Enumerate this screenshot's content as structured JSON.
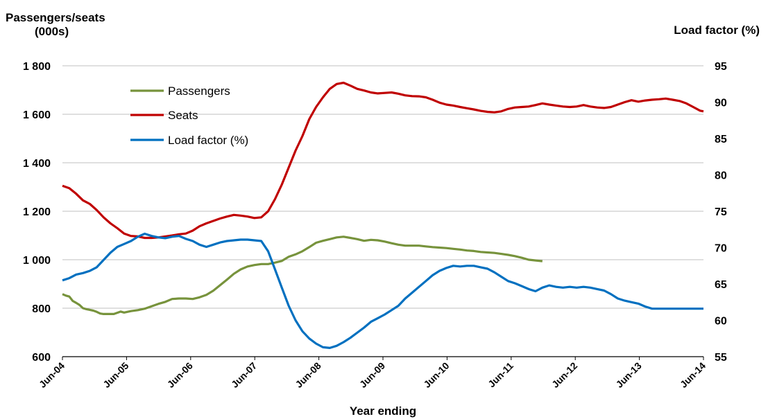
{
  "chart_data": {
    "type": "line",
    "left_axis_title_line1": "Passengers/seats",
    "left_axis_title_line2": "(000s)",
    "right_axis_title": "Load factor  (%)",
    "xlabel": "Year ending",
    "x_ticks": [
      "Jun-04",
      "Jun-05",
      "Jun-06",
      "Jun-07",
      "Jun-08",
      "Jun-09",
      "Jun-10",
      "Jun-11",
      "Jun-12",
      "Jun-13",
      "Jun-14"
    ],
    "left_ylim": [
      600,
      1800
    ],
    "left_y_ticks": [
      "600",
      "800",
      "1 000",
      "1 200",
      "1 400",
      "1 600",
      "1 800"
    ],
    "left_y_values": [
      600,
      800,
      1000,
      1200,
      1400,
      1600,
      1800
    ],
    "right_ylim": [
      55,
      95
    ],
    "right_y_ticks": [
      "55",
      "60",
      "65",
      "70",
      "75",
      "80",
      "85",
      "90",
      "95"
    ],
    "right_y_values": [
      55,
      60,
      65,
      70,
      75,
      80,
      85,
      90,
      95
    ],
    "grid": "horizontal",
    "legend_position": "top-left",
    "series": [
      {
        "name": "Passengers",
        "axis": "left",
        "color": "#77933c",
        "points": [
          [
            0,
            858
          ],
          [
            0.1,
            852
          ],
          [
            0.2,
            848
          ],
          [
            0.3,
            830
          ],
          [
            0.4,
            822
          ],
          [
            0.5,
            813
          ],
          [
            0.6,
            800
          ],
          [
            0.7,
            796
          ],
          [
            0.8,
            793
          ],
          [
            0.9,
            790
          ],
          [
            1.0,
            785
          ],
          [
            1.1,
            778
          ],
          [
            1.2,
            776
          ],
          [
            1.3,
            776
          ],
          [
            1.5,
            776
          ],
          [
            1.7,
            786
          ],
          [
            1.8,
            782
          ],
          [
            2.0,
            788
          ],
          [
            2.2,
            792
          ],
          [
            2.4,
            798
          ],
          [
            2.6,
            808
          ],
          [
            2.8,
            818
          ],
          [
            3.0,
            826
          ],
          [
            3.2,
            838
          ],
          [
            3.4,
            840
          ],
          [
            3.6,
            840
          ],
          [
            3.8,
            838
          ],
          [
            4.0,
            845
          ],
          [
            4.2,
            855
          ],
          [
            4.4,
            872
          ],
          [
            4.6,
            895
          ],
          [
            4.8,
            918
          ],
          [
            5.0,
            942
          ],
          [
            5.2,
            960
          ],
          [
            5.4,
            972
          ],
          [
            5.6,
            978
          ],
          [
            5.8,
            982
          ],
          [
            6.0,
            982
          ],
          [
            6.2,
            988
          ],
          [
            6.4,
            995
          ],
          [
            6.6,
            1012
          ],
          [
            6.8,
            1022
          ],
          [
            7.0,
            1035
          ],
          [
            7.2,
            1052
          ],
          [
            7.4,
            1070
          ],
          [
            7.6,
            1078
          ],
          [
            7.8,
            1085
          ],
          [
            8.0,
            1092
          ],
          [
            8.2,
            1095
          ],
          [
            8.4,
            1090
          ],
          [
            8.6,
            1085
          ],
          [
            8.8,
            1078
          ],
          [
            9.0,
            1082
          ],
          [
            9.2,
            1080
          ],
          [
            9.4,
            1075
          ],
          [
            9.6,
            1068
          ],
          [
            9.8,
            1062
          ],
          [
            10.0,
            1058
          ],
          [
            10.2,
            1058
          ],
          [
            10.4,
            1058
          ],
          [
            10.6,
            1055
          ],
          [
            10.8,
            1052
          ],
          [
            11.0,
            1050
          ],
          [
            11.2,
            1048
          ],
          [
            11.4,
            1045
          ],
          [
            11.6,
            1042
          ],
          [
            11.8,
            1038
          ],
          [
            12.0,
            1036
          ],
          [
            12.2,
            1032
          ],
          [
            12.4,
            1030
          ],
          [
            12.6,
            1028
          ],
          [
            12.8,
            1024
          ],
          [
            13.0,
            1020
          ],
          [
            13.2,
            1015
          ],
          [
            13.4,
            1008
          ],
          [
            13.6,
            1000
          ],
          [
            14.0,
            994
          ]
        ]
      },
      {
        "name": "Seats",
        "axis": "left",
        "color": "#c00000",
        "points": [
          [
            0,
            1305
          ],
          [
            0.2,
            1295
          ],
          [
            0.4,
            1272
          ],
          [
            0.6,
            1245
          ],
          [
            0.8,
            1230
          ],
          [
            1.0,
            1205
          ],
          [
            1.2,
            1175
          ],
          [
            1.4,
            1150
          ],
          [
            1.6,
            1130
          ],
          [
            1.8,
            1108
          ],
          [
            2.0,
            1098
          ],
          [
            2.2,
            1096
          ],
          [
            2.4,
            1090
          ],
          [
            2.6,
            1090
          ],
          [
            2.8,
            1092
          ],
          [
            3.0,
            1096
          ],
          [
            3.2,
            1100
          ],
          [
            3.4,
            1105
          ],
          [
            3.6,
            1108
          ],
          [
            3.8,
            1120
          ],
          [
            4.0,
            1138
          ],
          [
            4.2,
            1150
          ],
          [
            4.4,
            1160
          ],
          [
            4.6,
            1170
          ],
          [
            4.8,
            1178
          ],
          [
            5.0,
            1185
          ],
          [
            5.2,
            1182
          ],
          [
            5.4,
            1178
          ],
          [
            5.6,
            1172
          ],
          [
            5.8,
            1175
          ],
          [
            6.0,
            1200
          ],
          [
            6.2,
            1250
          ],
          [
            6.4,
            1310
          ],
          [
            6.6,
            1380
          ],
          [
            6.8,
            1450
          ],
          [
            7.0,
            1510
          ],
          [
            7.2,
            1580
          ],
          [
            7.4,
            1630
          ],
          [
            7.6,
            1670
          ],
          [
            7.8,
            1705
          ],
          [
            8.0,
            1725
          ],
          [
            8.2,
            1730
          ],
          [
            8.4,
            1718
          ],
          [
            8.6,
            1705
          ],
          [
            8.8,
            1698
          ],
          [
            9.0,
            1690
          ],
          [
            9.2,
            1686
          ],
          [
            9.4,
            1688
          ],
          [
            9.6,
            1690
          ],
          [
            9.8,
            1685
          ],
          [
            10.0,
            1678
          ],
          [
            10.2,
            1675
          ],
          [
            10.4,
            1674
          ],
          [
            10.6,
            1670
          ],
          [
            10.8,
            1660
          ],
          [
            11.0,
            1648
          ],
          [
            11.2,
            1640
          ],
          [
            11.4,
            1636
          ],
          [
            11.6,
            1630
          ],
          [
            11.8,
            1625
          ],
          [
            12.0,
            1620
          ],
          [
            12.2,
            1614
          ],
          [
            12.4,
            1610
          ],
          [
            12.6,
            1608
          ],
          [
            12.8,
            1612
          ],
          [
            13.0,
            1622
          ],
          [
            13.2,
            1628
          ],
          [
            13.4,
            1630
          ],
          [
            13.6,
            1632
          ],
          [
            13.8,
            1638
          ],
          [
            14.0,
            1645
          ],
          [
            14.2,
            1640
          ],
          [
            14.4,
            1636
          ],
          [
            14.6,
            1632
          ],
          [
            14.8,
            1630
          ],
          [
            15.0,
            1632
          ],
          [
            15.2,
            1638
          ],
          [
            15.4,
            1632
          ],
          [
            15.6,
            1628
          ],
          [
            15.8,
            1626
          ],
          [
            16.0,
            1630
          ],
          [
            16.2,
            1640
          ],
          [
            16.4,
            1650
          ],
          [
            16.6,
            1658
          ],
          [
            16.8,
            1652
          ],
          [
            17.0,
            1657
          ],
          [
            17.2,
            1660
          ],
          [
            17.4,
            1662
          ],
          [
            17.6,
            1665
          ],
          [
            17.8,
            1660
          ],
          [
            18.0,
            1655
          ],
          [
            18.2,
            1645
          ],
          [
            18.4,
            1630
          ],
          [
            18.6,
            1615
          ],
          [
            18.7,
            1612
          ]
        ]
      },
      {
        "name": "Load factor (%)",
        "axis": "right",
        "color": "#0070c0",
        "points": [
          [
            0,
            65.5
          ],
          [
            0.2,
            65.8
          ],
          [
            0.4,
            66.3
          ],
          [
            0.6,
            66.5
          ],
          [
            0.8,
            66.8
          ],
          [
            1.0,
            67.3
          ],
          [
            1.2,
            68.3
          ],
          [
            1.4,
            69.3
          ],
          [
            1.6,
            70.1
          ],
          [
            1.8,
            70.5
          ],
          [
            2.0,
            70.9
          ],
          [
            2.2,
            71.5
          ],
          [
            2.4,
            71.9
          ],
          [
            2.6,
            71.6
          ],
          [
            2.8,
            71.4
          ],
          [
            3.0,
            71.3
          ],
          [
            3.2,
            71.5
          ],
          [
            3.4,
            71.6
          ],
          [
            3.6,
            71.2
          ],
          [
            3.8,
            70.9
          ],
          [
            4.0,
            70.4
          ],
          [
            4.2,
            70.1
          ],
          [
            4.4,
            70.4
          ],
          [
            4.6,
            70.7
          ],
          [
            4.8,
            70.9
          ],
          [
            5.0,
            71.0
          ],
          [
            5.2,
            71.1
          ],
          [
            5.4,
            71.1
          ],
          [
            5.6,
            71.0
          ],
          [
            5.8,
            70.9
          ],
          [
            6.0,
            69.5
          ],
          [
            6.2,
            67.0
          ],
          [
            6.4,
            64.5
          ],
          [
            6.6,
            62.0
          ],
          [
            6.8,
            60.0
          ],
          [
            7.0,
            58.5
          ],
          [
            7.2,
            57.5
          ],
          [
            7.4,
            56.8
          ],
          [
            7.6,
            56.3
          ],
          [
            7.8,
            56.2
          ],
          [
            8.0,
            56.5
          ],
          [
            8.2,
            57.0
          ],
          [
            8.4,
            57.6
          ],
          [
            8.6,
            58.3
          ],
          [
            8.8,
            59.0
          ],
          [
            9.0,
            59.8
          ],
          [
            9.2,
            60.3
          ],
          [
            9.4,
            60.8
          ],
          [
            9.6,
            61.4
          ],
          [
            9.8,
            62.0
          ],
          [
            10.0,
            63.0
          ],
          [
            10.2,
            63.8
          ],
          [
            10.4,
            64.6
          ],
          [
            10.6,
            65.4
          ],
          [
            10.8,
            66.2
          ],
          [
            11.0,
            66.8
          ],
          [
            11.2,
            67.2
          ],
          [
            11.4,
            67.5
          ],
          [
            11.6,
            67.4
          ],
          [
            11.8,
            67.5
          ],
          [
            12.0,
            67.5
          ],
          [
            12.2,
            67.3
          ],
          [
            12.4,
            67.1
          ],
          [
            12.6,
            66.6
          ],
          [
            12.8,
            66.0
          ],
          [
            13.0,
            65.4
          ],
          [
            13.2,
            65.1
          ],
          [
            13.4,
            64.7
          ],
          [
            13.6,
            64.3
          ],
          [
            13.8,
            64.0
          ],
          [
            14.0,
            64.5
          ],
          [
            14.2,
            64.8
          ],
          [
            14.4,
            64.6
          ],
          [
            14.6,
            64.5
          ],
          [
            14.8,
            64.6
          ],
          [
            15.0,
            64.5
          ],
          [
            15.2,
            64.6
          ],
          [
            15.4,
            64.5
          ],
          [
            15.6,
            64.3
          ],
          [
            15.8,
            64.1
          ],
          [
            16.0,
            63.6
          ],
          [
            16.2,
            63.0
          ],
          [
            16.4,
            62.7
          ],
          [
            16.6,
            62.5
          ],
          [
            16.8,
            62.3
          ],
          [
            17.0,
            61.9
          ],
          [
            17.2,
            61.6
          ],
          [
            17.4,
            61.6
          ],
          [
            17.6,
            61.6
          ],
          [
            17.8,
            61.6
          ],
          [
            18.0,
            61.6
          ],
          [
            18.2,
            61.6
          ],
          [
            18.4,
            61.6
          ],
          [
            18.6,
            61.6
          ],
          [
            18.7,
            61.6
          ]
        ]
      }
    ]
  }
}
